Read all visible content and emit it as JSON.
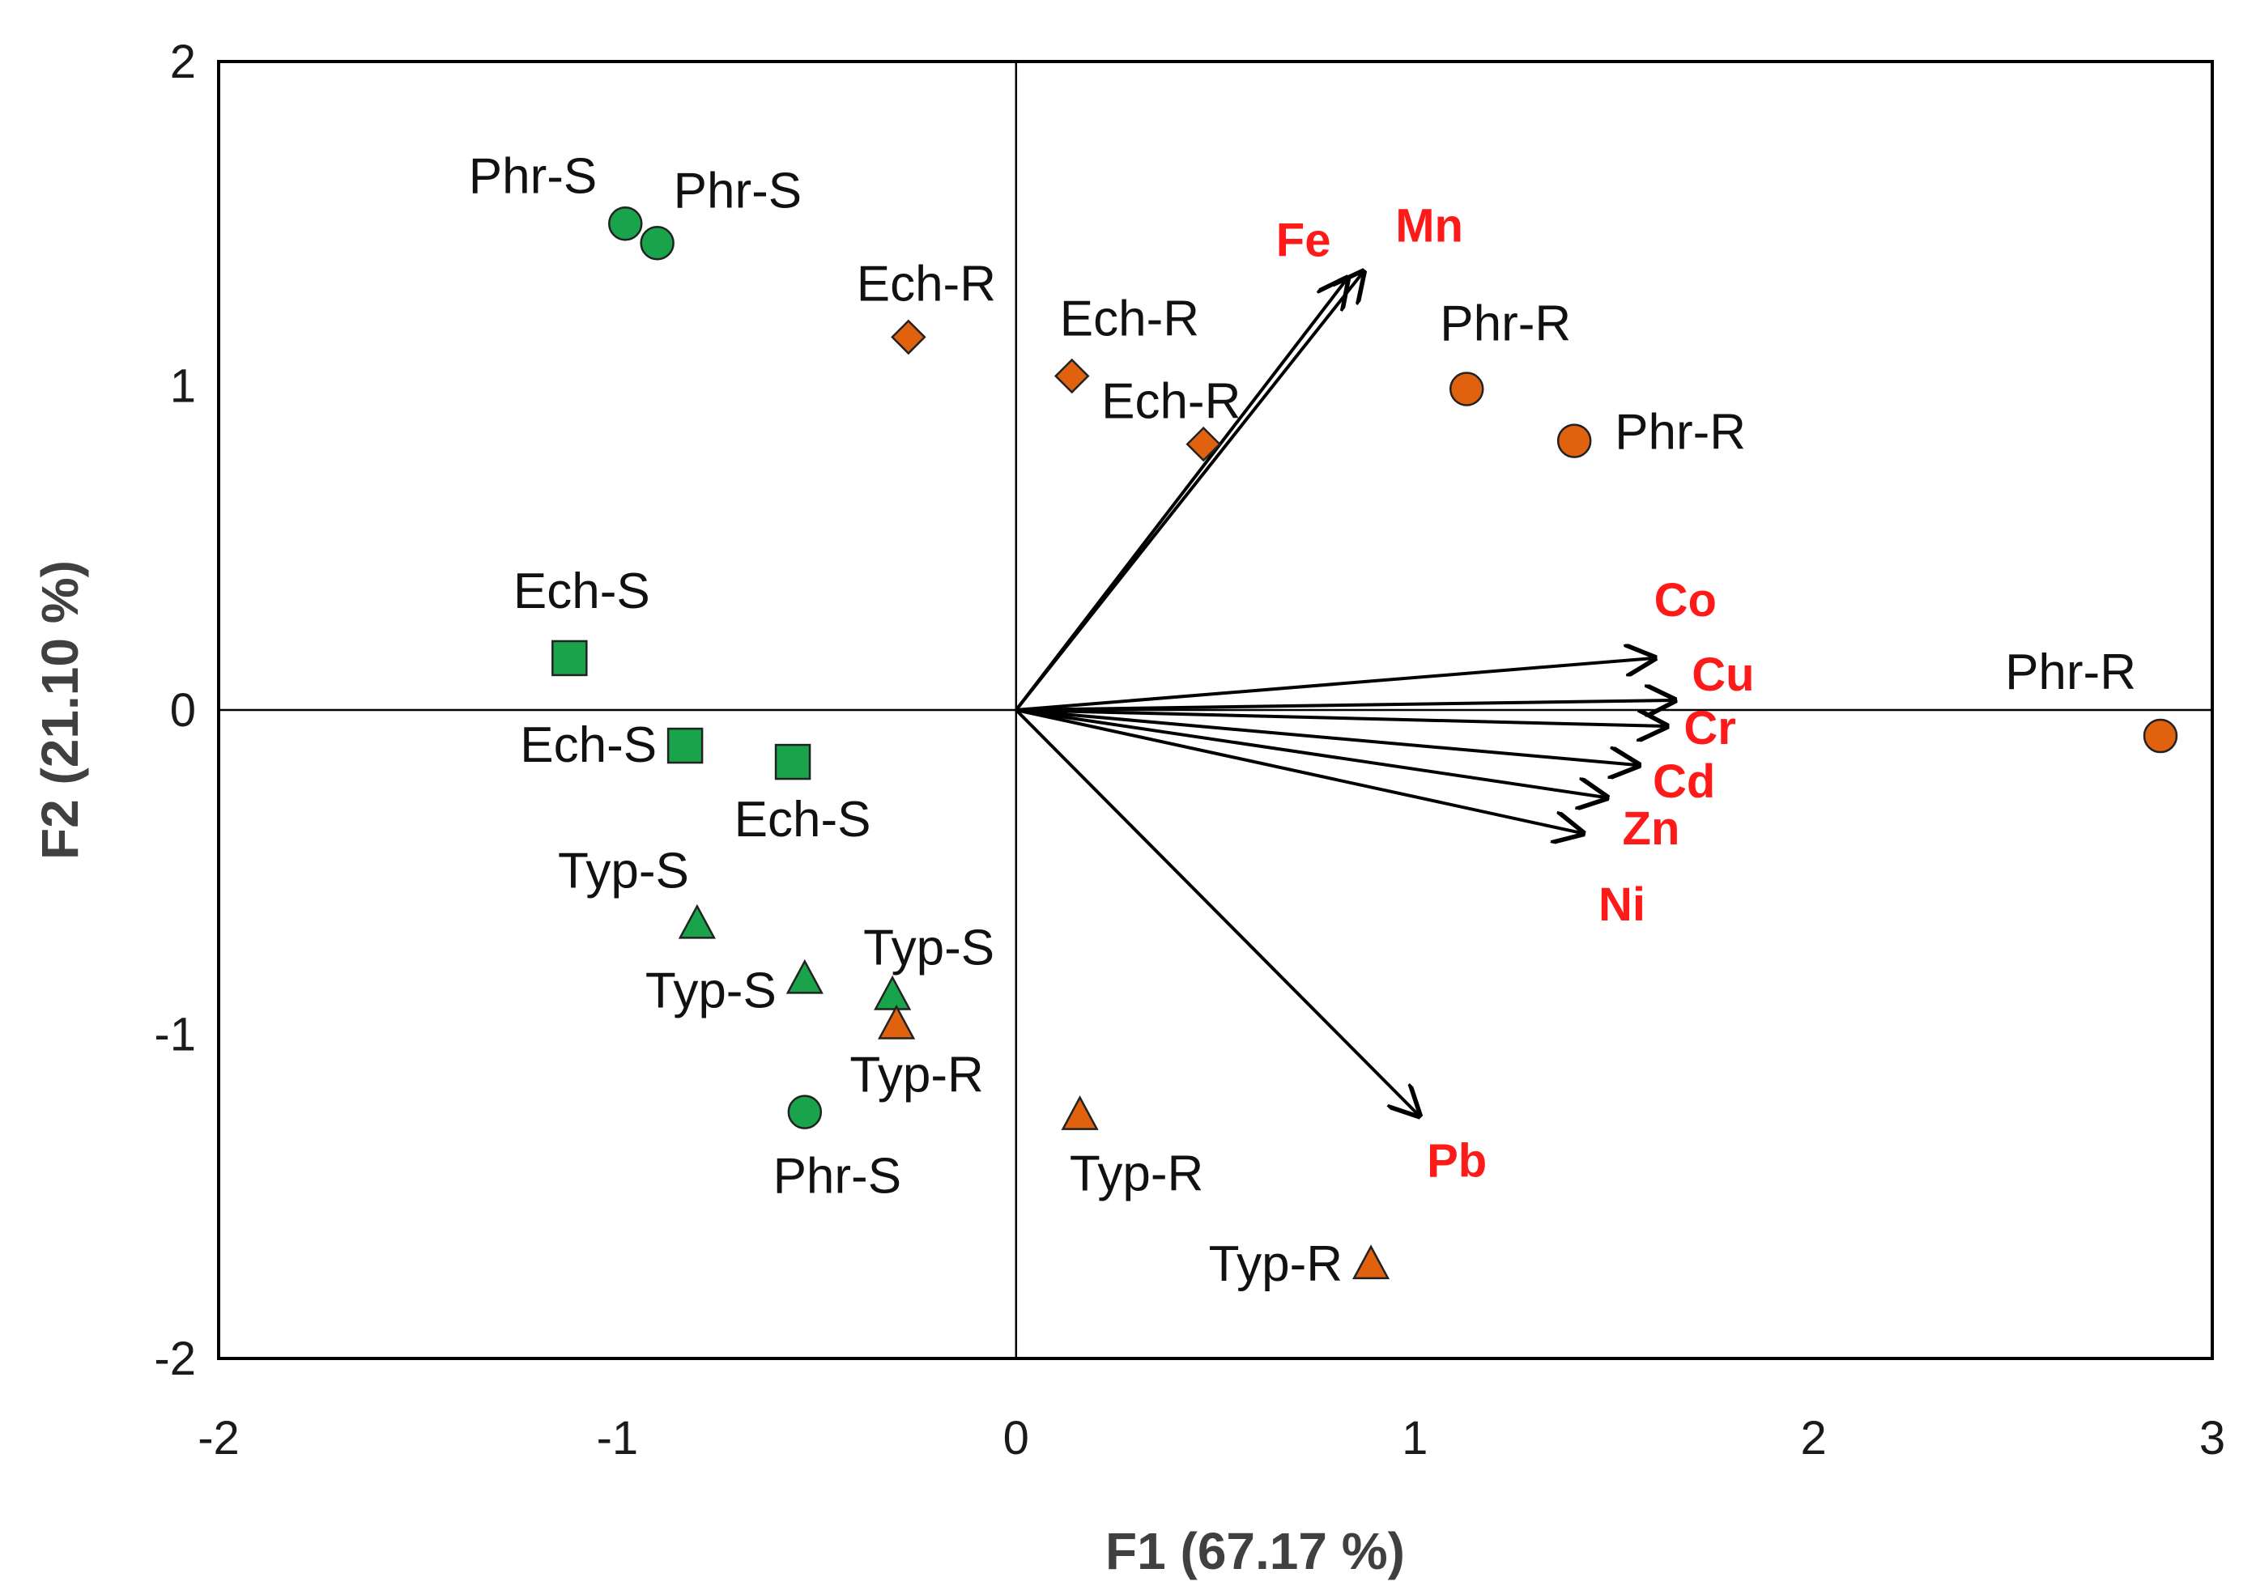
{
  "chart_data": {
    "type": "scatter",
    "title": "",
    "xlabel": "F1 (67.17 %)",
    "ylabel": "F2 (21.10 %)",
    "xlim": [
      -2,
      3
    ],
    "ylim": [
      -2,
      2
    ],
    "xticks": [
      -2,
      -1,
      0,
      1,
      2,
      3
    ],
    "yticks": [
      -2,
      -1,
      0,
      1,
      2
    ],
    "grid": false,
    "colors": {
      "shoot": "#19a34a",
      "root": "#e0620f",
      "vector": "#000000",
      "variable_label": "#ff1a1a"
    },
    "points": [
      {
        "label": "Phr-S",
        "x": -0.98,
        "y": 1.5,
        "shape": "circle",
        "group": "shoot"
      },
      {
        "label": "Phr-S",
        "x": -0.9,
        "y": 1.44,
        "shape": "circle",
        "group": "shoot"
      },
      {
        "label": "Phr-S",
        "x": -0.53,
        "y": -1.24,
        "shape": "circle",
        "group": "shoot"
      },
      {
        "label": "Ech-S",
        "x": -1.12,
        "y": 0.16,
        "shape": "square",
        "group": "shoot"
      },
      {
        "label": "Ech-S",
        "x": -0.83,
        "y": -0.11,
        "shape": "square",
        "group": "shoot"
      },
      {
        "label": "Ech-S",
        "x": -0.56,
        "y": -0.16,
        "shape": "square",
        "group": "shoot"
      },
      {
        "label": "Typ-S",
        "x": -0.8,
        "y": -0.66,
        "shape": "triangle",
        "group": "shoot"
      },
      {
        "label": "Typ-S",
        "x": -0.53,
        "y": -0.83,
        "shape": "triangle",
        "group": "shoot"
      },
      {
        "label": "Typ-S",
        "x": -0.31,
        "y": -0.88,
        "shape": "triangle",
        "group": "shoot"
      },
      {
        "label": "Ech-R",
        "x": -0.27,
        "y": 1.15,
        "shape": "diamond",
        "group": "root"
      },
      {
        "label": "Ech-R",
        "x": 0.14,
        "y": 1.03,
        "shape": "diamond",
        "group": "root"
      },
      {
        "label": "Ech-R",
        "x": 0.47,
        "y": 0.82,
        "shape": "diamond",
        "group": "root"
      },
      {
        "label": "Phr-R",
        "x": 1.13,
        "y": 0.99,
        "shape": "circle",
        "group": "root"
      },
      {
        "label": "Phr-R",
        "x": 1.4,
        "y": 0.83,
        "shape": "circle",
        "group": "root"
      },
      {
        "label": "Phr-R",
        "x": 2.87,
        "y": -0.08,
        "shape": "circle",
        "group": "root"
      },
      {
        "label": "Typ-R",
        "x": -0.3,
        "y": -0.97,
        "shape": "triangle",
        "group": "root"
      },
      {
        "label": "Typ-R",
        "x": 0.16,
        "y": -1.25,
        "shape": "triangle",
        "group": "root"
      },
      {
        "label": "Typ-R",
        "x": 0.89,
        "y": -1.71,
        "shape": "triangle",
        "group": "root"
      }
    ],
    "vectors": [
      {
        "label": "Fe",
        "x": 0.83,
        "y": 1.33
      },
      {
        "label": "Mn",
        "x": 0.87,
        "y": 1.35
      },
      {
        "label": "Co",
        "x": 1.6,
        "y": 0.16
      },
      {
        "label": "Cu",
        "x": 1.65,
        "y": 0.03
      },
      {
        "label": "Cr",
        "x": 1.63,
        "y": -0.05
      },
      {
        "label": "Cd",
        "x": 1.56,
        "y": -0.17
      },
      {
        "label": "Zn",
        "x": 1.48,
        "y": -0.27
      },
      {
        "label": "Ni",
        "x": 1.42,
        "y": -0.38
      },
      {
        "label": "Pb",
        "x": 1.01,
        "y": -1.25
      }
    ]
  }
}
